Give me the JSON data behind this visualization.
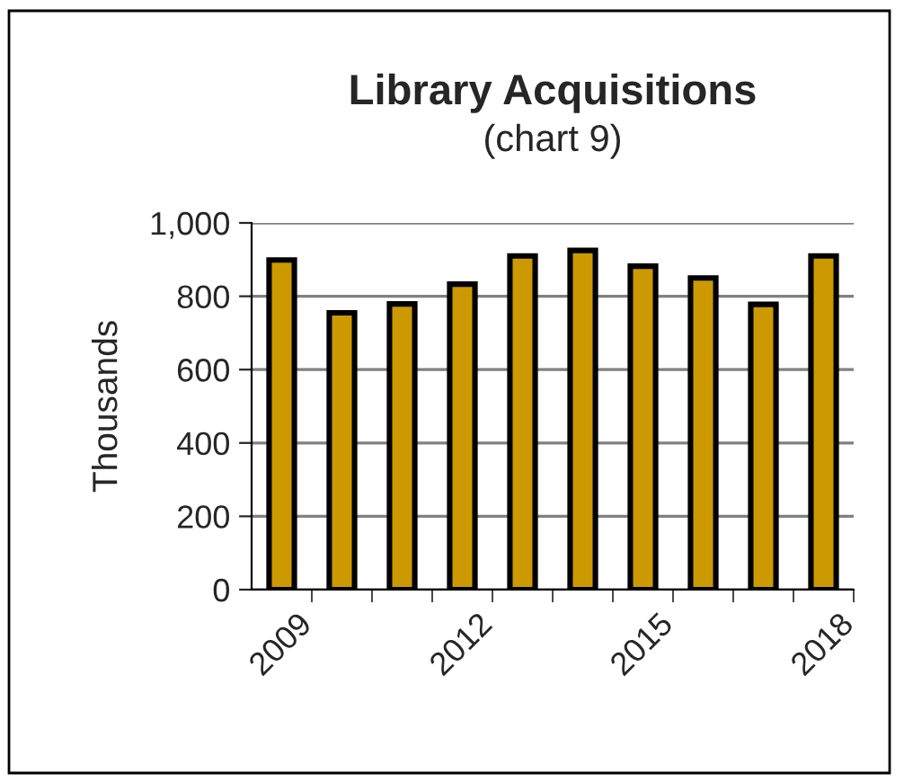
{
  "chart_data": {
    "type": "bar",
    "title": "Library Acquisitions",
    "subtitle": "(chart 9)",
    "ylabel": "Thousands",
    "categories": [
      "2009",
      null,
      null,
      "2012",
      null,
      null,
      "2015",
      null,
      null,
      "2018"
    ],
    "values": [
      899,
      755,
      779,
      833,
      910,
      925,
      882,
      850,
      778,
      910
    ],
    "color": "#cc9900",
    "ylim": [
      0,
      1000
    ],
    "yticks": [
      0,
      200,
      400,
      600,
      800,
      {
        "value": 1000,
        "label": "1,000"
      }
    ],
    "grid": "y",
    "legend": false
  }
}
